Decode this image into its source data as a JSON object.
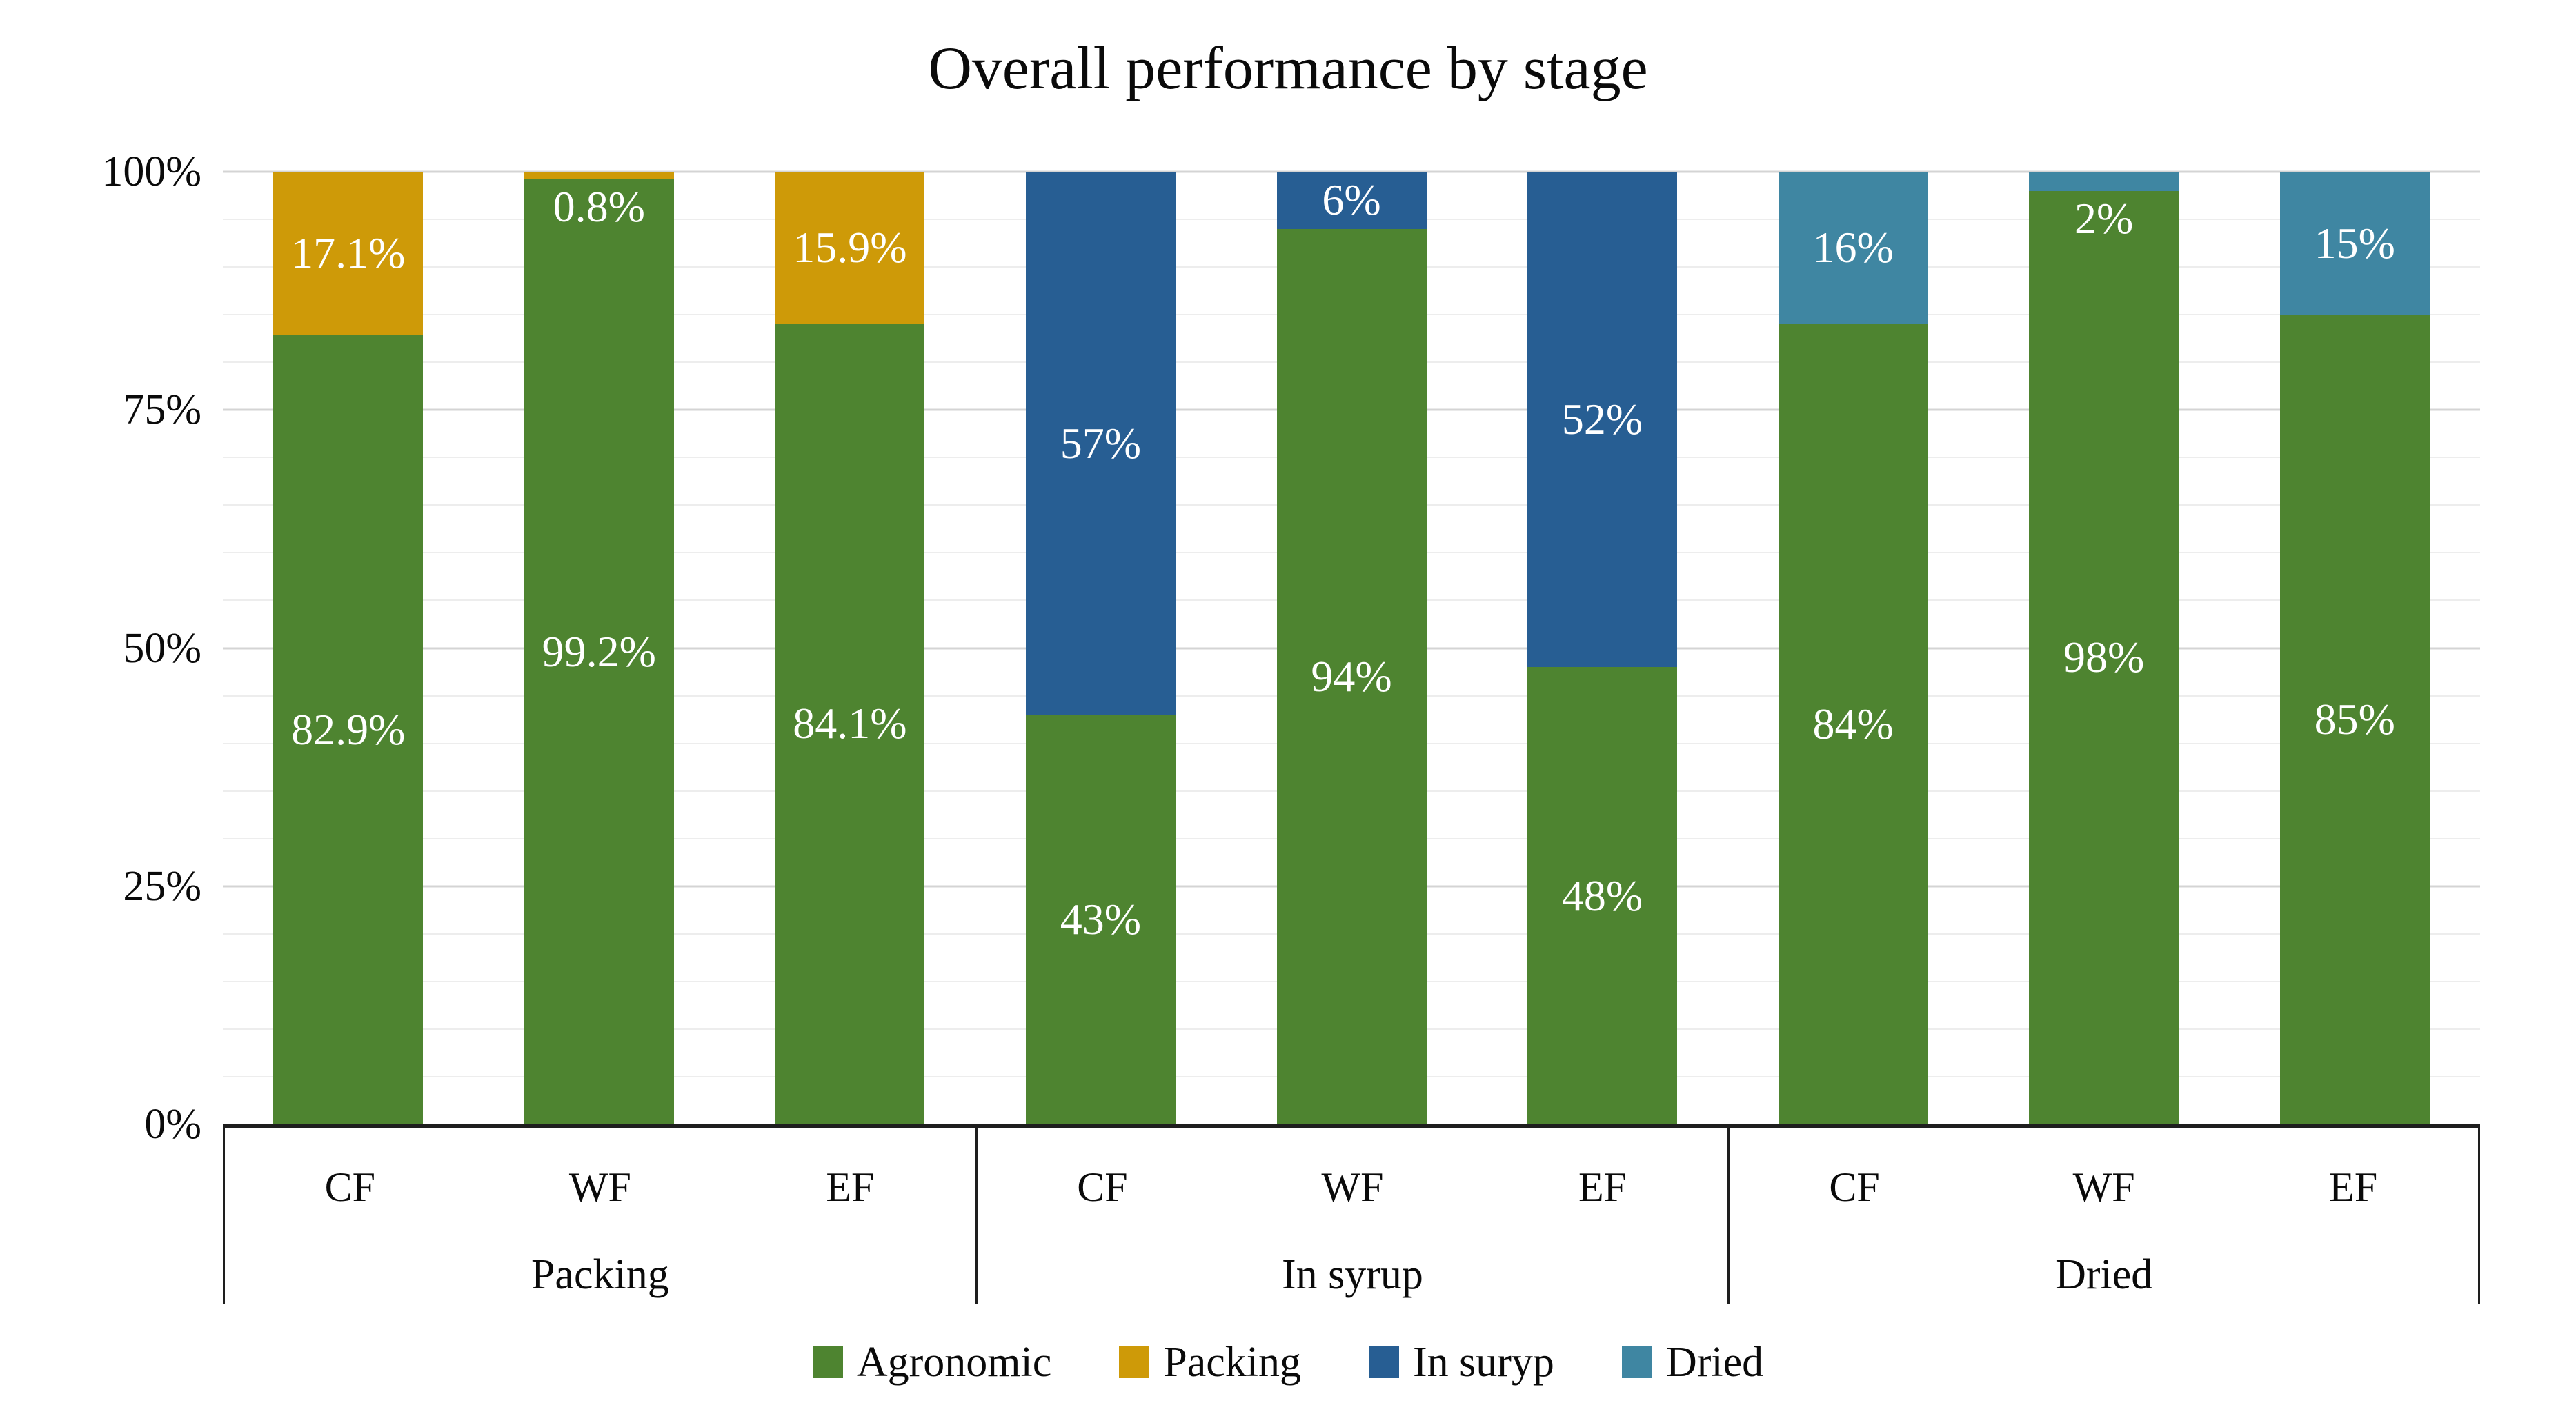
{
  "title": "Overall performance by stage",
  "colors": {
    "agronomic": "#4E8430",
    "packing": "#CE9A08",
    "in_syrup": "#275E93",
    "dried": "#3F86A2",
    "grid_minor": "#EDEDED",
    "grid_major": "#D4D4D4",
    "axis_line": "#1E1E1E",
    "bar_label": "#FFFFFF",
    "text": "#0A0A0A"
  },
  "yaxis": {
    "max": 100,
    "minor_step": 5,
    "major_step": 25,
    "ticks": [
      {
        "value": 100,
        "label": "100%"
      },
      {
        "value": 75,
        "label": "75%"
      },
      {
        "value": 50,
        "label": "50%"
      },
      {
        "value": 25,
        "label": "25%"
      },
      {
        "value": 0,
        "label": "0%"
      }
    ]
  },
  "legend": {
    "items": [
      {
        "label": "Agronomic",
        "color_key": "agronomic"
      },
      {
        "label": "Packing",
        "color_key": "packing"
      },
      {
        "label": "In suryp",
        "color_key": "in_syrup"
      },
      {
        "label": "Dried",
        "color_key": "dried"
      }
    ]
  },
  "chart_data": {
    "type": "bar",
    "stacked": true,
    "value_unit": "%",
    "title": "Overall performance by stage",
    "ylim": [
      0,
      100
    ],
    "yticks": [
      0,
      25,
      50,
      75,
      100
    ],
    "minor_gridline_step": 5,
    "legend_position": "bottom",
    "series_names": [
      "Agronomic",
      "Packing",
      "In suryp",
      "Dried"
    ],
    "groups": [
      {
        "label": "Packing",
        "series_key": "packing",
        "bars": [
          {
            "category": "CF",
            "agronomic": 82.9,
            "stage": 17.1,
            "agronomic_label": "82.9%",
            "stage_label": "17.1%"
          },
          {
            "category": "WF",
            "agronomic": 99.2,
            "stage": 0.8,
            "agronomic_label": "99.2%",
            "stage_label": "0.8%"
          },
          {
            "category": "EF",
            "agronomic": 84.1,
            "stage": 15.9,
            "agronomic_label": "84.1%",
            "stage_label": "15.9%"
          }
        ]
      },
      {
        "label": "In syrup",
        "series_key": "in_syrup",
        "bars": [
          {
            "category": "CF",
            "agronomic": 43,
            "stage": 57,
            "agronomic_label": "43%",
            "stage_label": "57%"
          },
          {
            "category": "WF",
            "agronomic": 94,
            "stage": 6,
            "agronomic_label": "94%",
            "stage_label": "6%"
          },
          {
            "category": "EF",
            "agronomic": 48,
            "stage": 52,
            "agronomic_label": "48%",
            "stage_label": "52%"
          }
        ]
      },
      {
        "label": "Dried",
        "series_key": "dried",
        "bars": [
          {
            "category": "CF",
            "agronomic": 84,
            "stage": 16,
            "agronomic_label": "84%",
            "stage_label": "16%"
          },
          {
            "category": "WF",
            "agronomic": 98,
            "stage": 2,
            "agronomic_label": "98%",
            "stage_label": "2%"
          },
          {
            "category": "EF",
            "agronomic": 85,
            "stage": 15,
            "agronomic_label": "85%",
            "stage_label": "15%"
          }
        ]
      }
    ]
  }
}
